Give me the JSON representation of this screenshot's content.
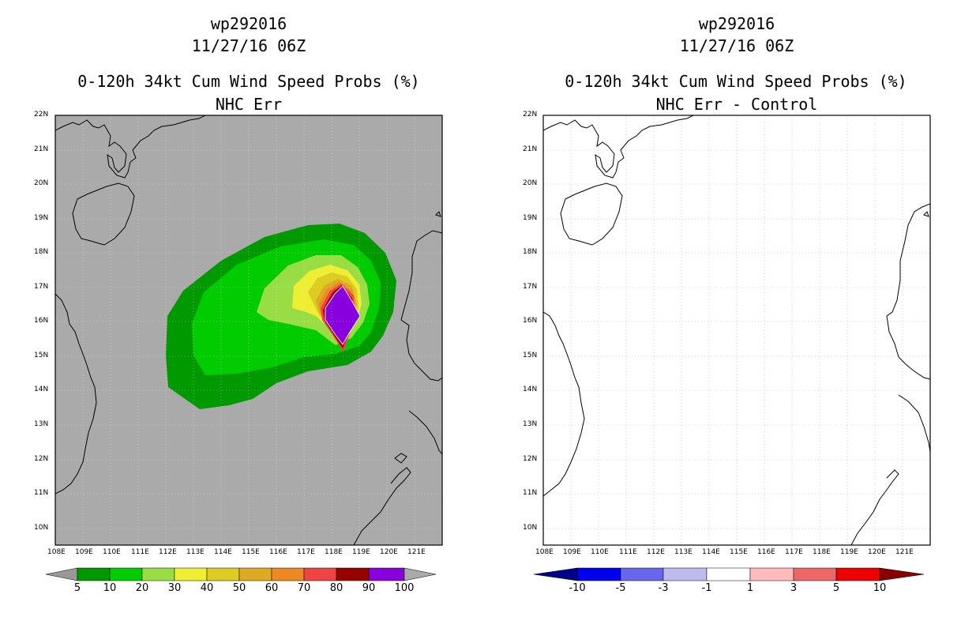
{
  "left_panel": {
    "storm_id": "wp292016",
    "datetime": "11/27/16 06Z",
    "product": "0-120h 34kt Cum Wind Speed Probs (%)",
    "subtitle": "NHC Err",
    "background_color": "#aaaaaa",
    "colorbar_labels": [
      "5",
      "10",
      "20",
      "30",
      "40",
      "50",
      "60",
      "70",
      "80",
      "90",
      "100"
    ],
    "colorbar_colors": [
      "#999999",
      "#009900",
      "#00cc00",
      "#99dd44",
      "#eeee33",
      "#ddcc22",
      "#ddaa22",
      "#ee8822",
      "#ee4444",
      "#990000",
      "#8800dd",
      "#aaaaaa"
    ]
  },
  "right_panel": {
    "storm_id": "wp292016",
    "datetime": "11/27/16 06Z",
    "product": "0-120h 34kt Cum Wind Speed Probs (%)",
    "subtitle": "NHC Err - Control",
    "background_color": "#ffffff",
    "colorbar_labels": [
      "-10",
      "-5",
      "-3",
      "-1",
      "1",
      "3",
      "5",
      "10"
    ],
    "colorbar_colors": [
      "#000088",
      "#0000ee",
      "#6666ee",
      "#bbbbee",
      "#ffffff",
      "#ffbbbb",
      "#ee6666",
      "#ee0000",
      "#880000"
    ]
  },
  "lat_labels": [
    "22N",
    "21N",
    "20N",
    "19N",
    "18N",
    "17N",
    "16N",
    "15N",
    "14N",
    "13N",
    "12N",
    "11N",
    "10N"
  ],
  "lon_labels": [
    "108E",
    "109E",
    "110E",
    "111E",
    "112E",
    "113E",
    "114E",
    "115E",
    "116E",
    "117E",
    "118E",
    "119E",
    "120E",
    "121E"
  ]
}
